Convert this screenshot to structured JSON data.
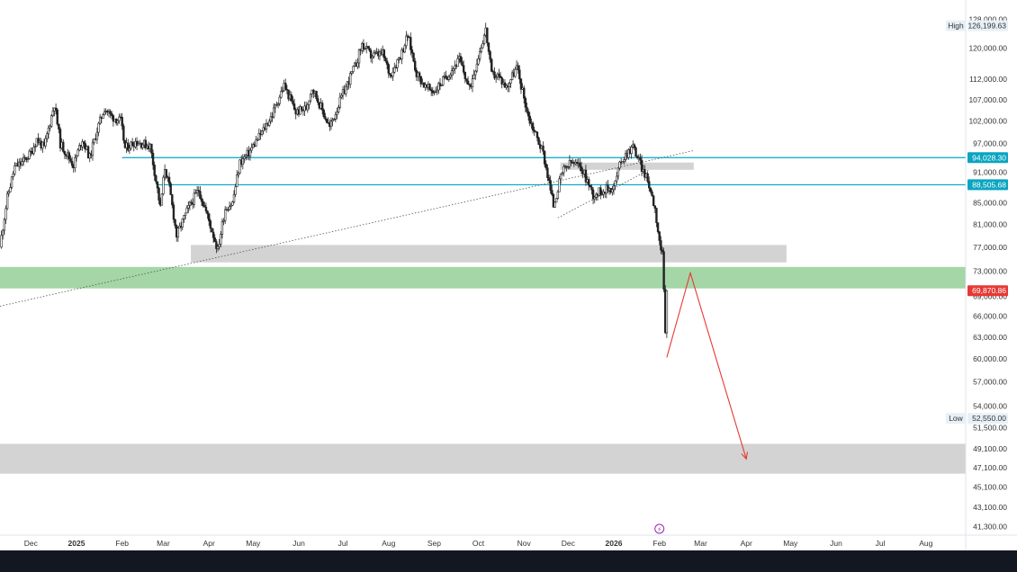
{
  "chart_data": {
    "type": "candlestick",
    "colors": {
      "up": "#26a69a",
      "down": "#ef5350",
      "ink": "#222222",
      "hline": "#00a8c6",
      "zone_green": "#a5d6a7",
      "zone_gray": "#d3d3d3",
      "arrow": "#e53935",
      "price_tag_red": "#e53935",
      "price_tag_cyan": "#0aa5c0",
      "high_low_badge": "#e8f0f7",
      "bottom_bar": "#131722"
    },
    "y_axis": {
      "scale": "log",
      "range": [
        40500,
        131000
      ],
      "tick_labels": [
        {
          "value": 128000,
          "label": "128,000.00"
        },
        {
          "value": 120000,
          "label": "120,000.00"
        },
        {
          "value": 112000,
          "label": "112,000.00"
        },
        {
          "value": 107000,
          "label": "107,000.00"
        },
        {
          "value": 102000,
          "label": "102,000.00"
        },
        {
          "value": 97000,
          "label": "97,000.00"
        },
        {
          "value": 91000,
          "label": "91,000.00"
        },
        {
          "value": 85000,
          "label": "85,000.00"
        },
        {
          "value": 81000,
          "label": "81,000.00"
        },
        {
          "value": 77000,
          "label": "77,000.00"
        },
        {
          "value": 73000,
          "label": "73,000.00"
        },
        {
          "value": 69000,
          "label": "69,000.00"
        },
        {
          "value": 66000,
          "label": "66,000.00"
        },
        {
          "value": 63000,
          "label": "63,000.00"
        },
        {
          "value": 60000,
          "label": "60,000.00"
        },
        {
          "value": 57000,
          "label": "57,000.00"
        },
        {
          "value": 54000,
          "label": "54,000.00"
        },
        {
          "value": 51500,
          "label": "51,500.00"
        },
        {
          "value": 49100,
          "label": "49,100.00"
        },
        {
          "value": 47100,
          "label": "47,100.00"
        },
        {
          "value": 45100,
          "label": "45,100.00"
        },
        {
          "value": 43100,
          "label": "43,100.00"
        },
        {
          "value": 41300,
          "label": "41,300.00"
        }
      ]
    },
    "x_axis": {
      "tick_labels": [
        {
          "date": "2024-12-01",
          "label": "Dec",
          "bold": false
        },
        {
          "date": "2025-01-01",
          "label": "2025",
          "bold": true
        },
        {
          "date": "2025-02-01",
          "label": "Feb",
          "bold": false
        },
        {
          "date": "2025-03-01",
          "label": "Mar",
          "bold": false
        },
        {
          "date": "2025-04-01",
          "label": "Apr",
          "bold": false
        },
        {
          "date": "2025-05-01",
          "label": "May",
          "bold": false
        },
        {
          "date": "2025-06-01",
          "label": "Jun",
          "bold": false
        },
        {
          "date": "2025-07-01",
          "label": "Jul",
          "bold": false
        },
        {
          "date": "2025-08-01",
          "label": "Aug",
          "bold": false
        },
        {
          "date": "2025-09-01",
          "label": "Sep",
          "bold": false
        },
        {
          "date": "2025-10-01",
          "label": "Oct",
          "bold": false
        },
        {
          "date": "2025-11-01",
          "label": "Nov",
          "bold": false
        },
        {
          "date": "2025-12-01",
          "label": "Dec",
          "bold": false
        },
        {
          "date": "2026-01-01",
          "label": "2026",
          "bold": true
        },
        {
          "date": "2026-02-01",
          "label": "Feb",
          "bold": false
        },
        {
          "date": "2026-03-01",
          "label": "Mar",
          "bold": false
        },
        {
          "date": "2026-04-01",
          "label": "Apr",
          "bold": false
        },
        {
          "date": "2026-05-01",
          "label": "May",
          "bold": false
        },
        {
          "date": "2026-06-01",
          "label": "Jun",
          "bold": false
        },
        {
          "date": "2026-07-01",
          "label": "Jul",
          "bold": false
        },
        {
          "date": "2026-08-01",
          "label": "Aug",
          "bold": false
        }
      ]
    },
    "price_path": [
      {
        "date": "2024-11-10",
        "close": 77000
      },
      {
        "date": "2024-11-15",
        "close": 86000
      },
      {
        "date": "2024-11-20",
        "close": 92000
      },
      {
        "date": "2024-11-25",
        "close": 93000
      },
      {
        "date": "2024-12-01",
        "close": 95000
      },
      {
        "date": "2024-12-05",
        "close": 98000
      },
      {
        "date": "2024-12-10",
        "close": 96000
      },
      {
        "date": "2024-12-17",
        "close": 106000
      },
      {
        "date": "2024-12-21",
        "close": 97000
      },
      {
        "date": "2024-12-30",
        "close": 92500
      },
      {
        "date": "2025-01-05",
        "close": 98000
      },
      {
        "date": "2025-01-10",
        "close": 94000
      },
      {
        "date": "2025-01-15",
        "close": 100000
      },
      {
        "date": "2025-01-20",
        "close": 105000
      },
      {
        "date": "2025-01-25",
        "close": 103000
      },
      {
        "date": "2025-01-31",
        "close": 102000
      },
      {
        "date": "2025-02-03",
        "close": 96000
      },
      {
        "date": "2025-02-10",
        "close": 97500
      },
      {
        "date": "2025-02-20",
        "close": 96500
      },
      {
        "date": "2025-02-27",
        "close": 84000
      },
      {
        "date": "2025-03-02",
        "close": 92000
      },
      {
        "date": "2025-03-05",
        "close": 88000
      },
      {
        "date": "2025-03-10",
        "close": 79000
      },
      {
        "date": "2025-03-18",
        "close": 84000
      },
      {
        "date": "2025-03-25",
        "close": 87500
      },
      {
        "date": "2025-03-31",
        "close": 82500
      },
      {
        "date": "2025-04-07",
        "close": 76500
      },
      {
        "date": "2025-04-12",
        "close": 84000
      },
      {
        "date": "2025-04-17",
        "close": 85000
      },
      {
        "date": "2025-04-22",
        "close": 93000
      },
      {
        "date": "2025-04-28",
        "close": 95000
      },
      {
        "date": "2025-05-08",
        "close": 100000
      },
      {
        "date": "2025-05-14",
        "close": 103500
      },
      {
        "date": "2025-05-22",
        "close": 110500
      },
      {
        "date": "2025-05-30",
        "close": 104000
      },
      {
        "date": "2025-06-06",
        "close": 105000
      },
      {
        "date": "2025-06-10",
        "close": 110000
      },
      {
        "date": "2025-06-22",
        "close": 100500
      },
      {
        "date": "2025-06-30",
        "close": 107500
      },
      {
        "date": "2025-07-10",
        "close": 116000
      },
      {
        "date": "2025-07-14",
        "close": 121000
      },
      {
        "date": "2025-07-20",
        "close": 118000
      },
      {
        "date": "2025-07-28",
        "close": 118500
      },
      {
        "date": "2025-08-02",
        "close": 113000
      },
      {
        "date": "2025-08-10",
        "close": 119000
      },
      {
        "date": "2025-08-14",
        "close": 123500
      },
      {
        "date": "2025-08-20",
        "close": 113500
      },
      {
        "date": "2025-08-26",
        "close": 110000
      },
      {
        "date": "2025-09-01",
        "close": 109000
      },
      {
        "date": "2025-09-10",
        "close": 113000
      },
      {
        "date": "2025-09-18",
        "close": 117000
      },
      {
        "date": "2025-09-25",
        "close": 109500
      },
      {
        "date": "2025-10-01",
        "close": 118000
      },
      {
        "date": "2025-10-06",
        "close": 125000
      },
      {
        "date": "2025-10-10",
        "close": 113000
      },
      {
        "date": "2025-10-14",
        "close": 113000
      },
      {
        "date": "2025-10-20",
        "close": 110000
      },
      {
        "date": "2025-10-27",
        "close": 115000
      },
      {
        "date": "2025-11-04",
        "close": 103000
      },
      {
        "date": "2025-11-14",
        "close": 95000
      },
      {
        "date": "2025-11-21",
        "close": 84500
      },
      {
        "date": "2025-11-27",
        "close": 91000
      },
      {
        "date": "2025-12-03",
        "close": 93000
      },
      {
        "date": "2025-12-10",
        "close": 92000
      },
      {
        "date": "2025-12-18",
        "close": 86500
      },
      {
        "date": "2025-12-25",
        "close": 87500
      },
      {
        "date": "2026-01-01",
        "close": 88000
      },
      {
        "date": "2026-01-06",
        "close": 93500
      },
      {
        "date": "2026-01-14",
        "close": 96500
      },
      {
        "date": "2026-01-20",
        "close": 92000
      },
      {
        "date": "2026-01-25",
        "close": 88500
      },
      {
        "date": "2026-01-29",
        "close": 84000
      },
      {
        "date": "2026-02-01",
        "close": 78000
      },
      {
        "date": "2026-02-03",
        "close": 75500
      },
      {
        "date": "2026-02-05",
        "close": 63500
      },
      {
        "date": "2026-02-06",
        "close": 69870.86
      }
    ],
    "horizontal_lines": [
      {
        "value": 94028.3,
        "label": "94,028.30",
        "from_date": "2025-02-01"
      },
      {
        "value": 88505.68,
        "label": "88,505.68",
        "from_date": "2025-02-25"
      }
    ],
    "zones": [
      {
        "name": "gray-zone-upper",
        "from": 74500,
        "to": 77300,
        "start": "2025-03-20",
        "end": "2026-04-28",
        "color": "#d3d3d3"
      },
      {
        "name": "green-zone",
        "from": 70300,
        "to": 73600,
        "start": "2024-11-10",
        "end": "2026-08-31",
        "color": "#a5d6a7"
      },
      {
        "name": "gray-zone-small",
        "from": 91600,
        "to": 92900,
        "start": "2025-11-26",
        "end": "2026-02-24",
        "color": "#d3d3d3"
      },
      {
        "name": "gray-zone-lower",
        "from": 46500,
        "to": 49600,
        "start": "2024-11-10",
        "end": "2026-08-31",
        "color": "#d3d3d3"
      }
    ],
    "trend_lines": [
      {
        "name": "long-dotted-trendline",
        "from": {
          "date": "2024-11-10",
          "value": 67500
        },
        "to": {
          "date": "2026-02-24",
          "value": 95500
        },
        "style": "dotted"
      },
      {
        "name": "wedge-lower-line",
        "from": {
          "date": "2025-11-24",
          "value": 82200
        },
        "to": {
          "date": "2026-01-25",
          "value": 91500
        },
        "style": "dotted"
      }
    ],
    "projection_arrow": {
      "points": [
        {
          "date": "2026-02-06",
          "value": 60200
        },
        {
          "date": "2026-02-22",
          "value": 72700
        },
        {
          "date": "2026-04-01",
          "value": 48000
        }
      ]
    },
    "price_tags": [
      {
        "value": 94028.3,
        "label": "94,028.30",
        "style": "cyan"
      },
      {
        "value": 88505.68,
        "label": "88,505.68",
        "style": "cyan"
      },
      {
        "value": 69870.86,
        "label": "69,870.86",
        "style": "red"
      }
    ],
    "high_low": [
      {
        "name": "high",
        "label": "High",
        "value": 126199.63,
        "value_label": "126,199.63"
      },
      {
        "name": "low",
        "label": "Low",
        "value": 52550.0,
        "value_label": "52,550.00"
      }
    ],
    "event_marker_date": "2026-02-01",
    "event_marker_symbol": "⚡"
  }
}
